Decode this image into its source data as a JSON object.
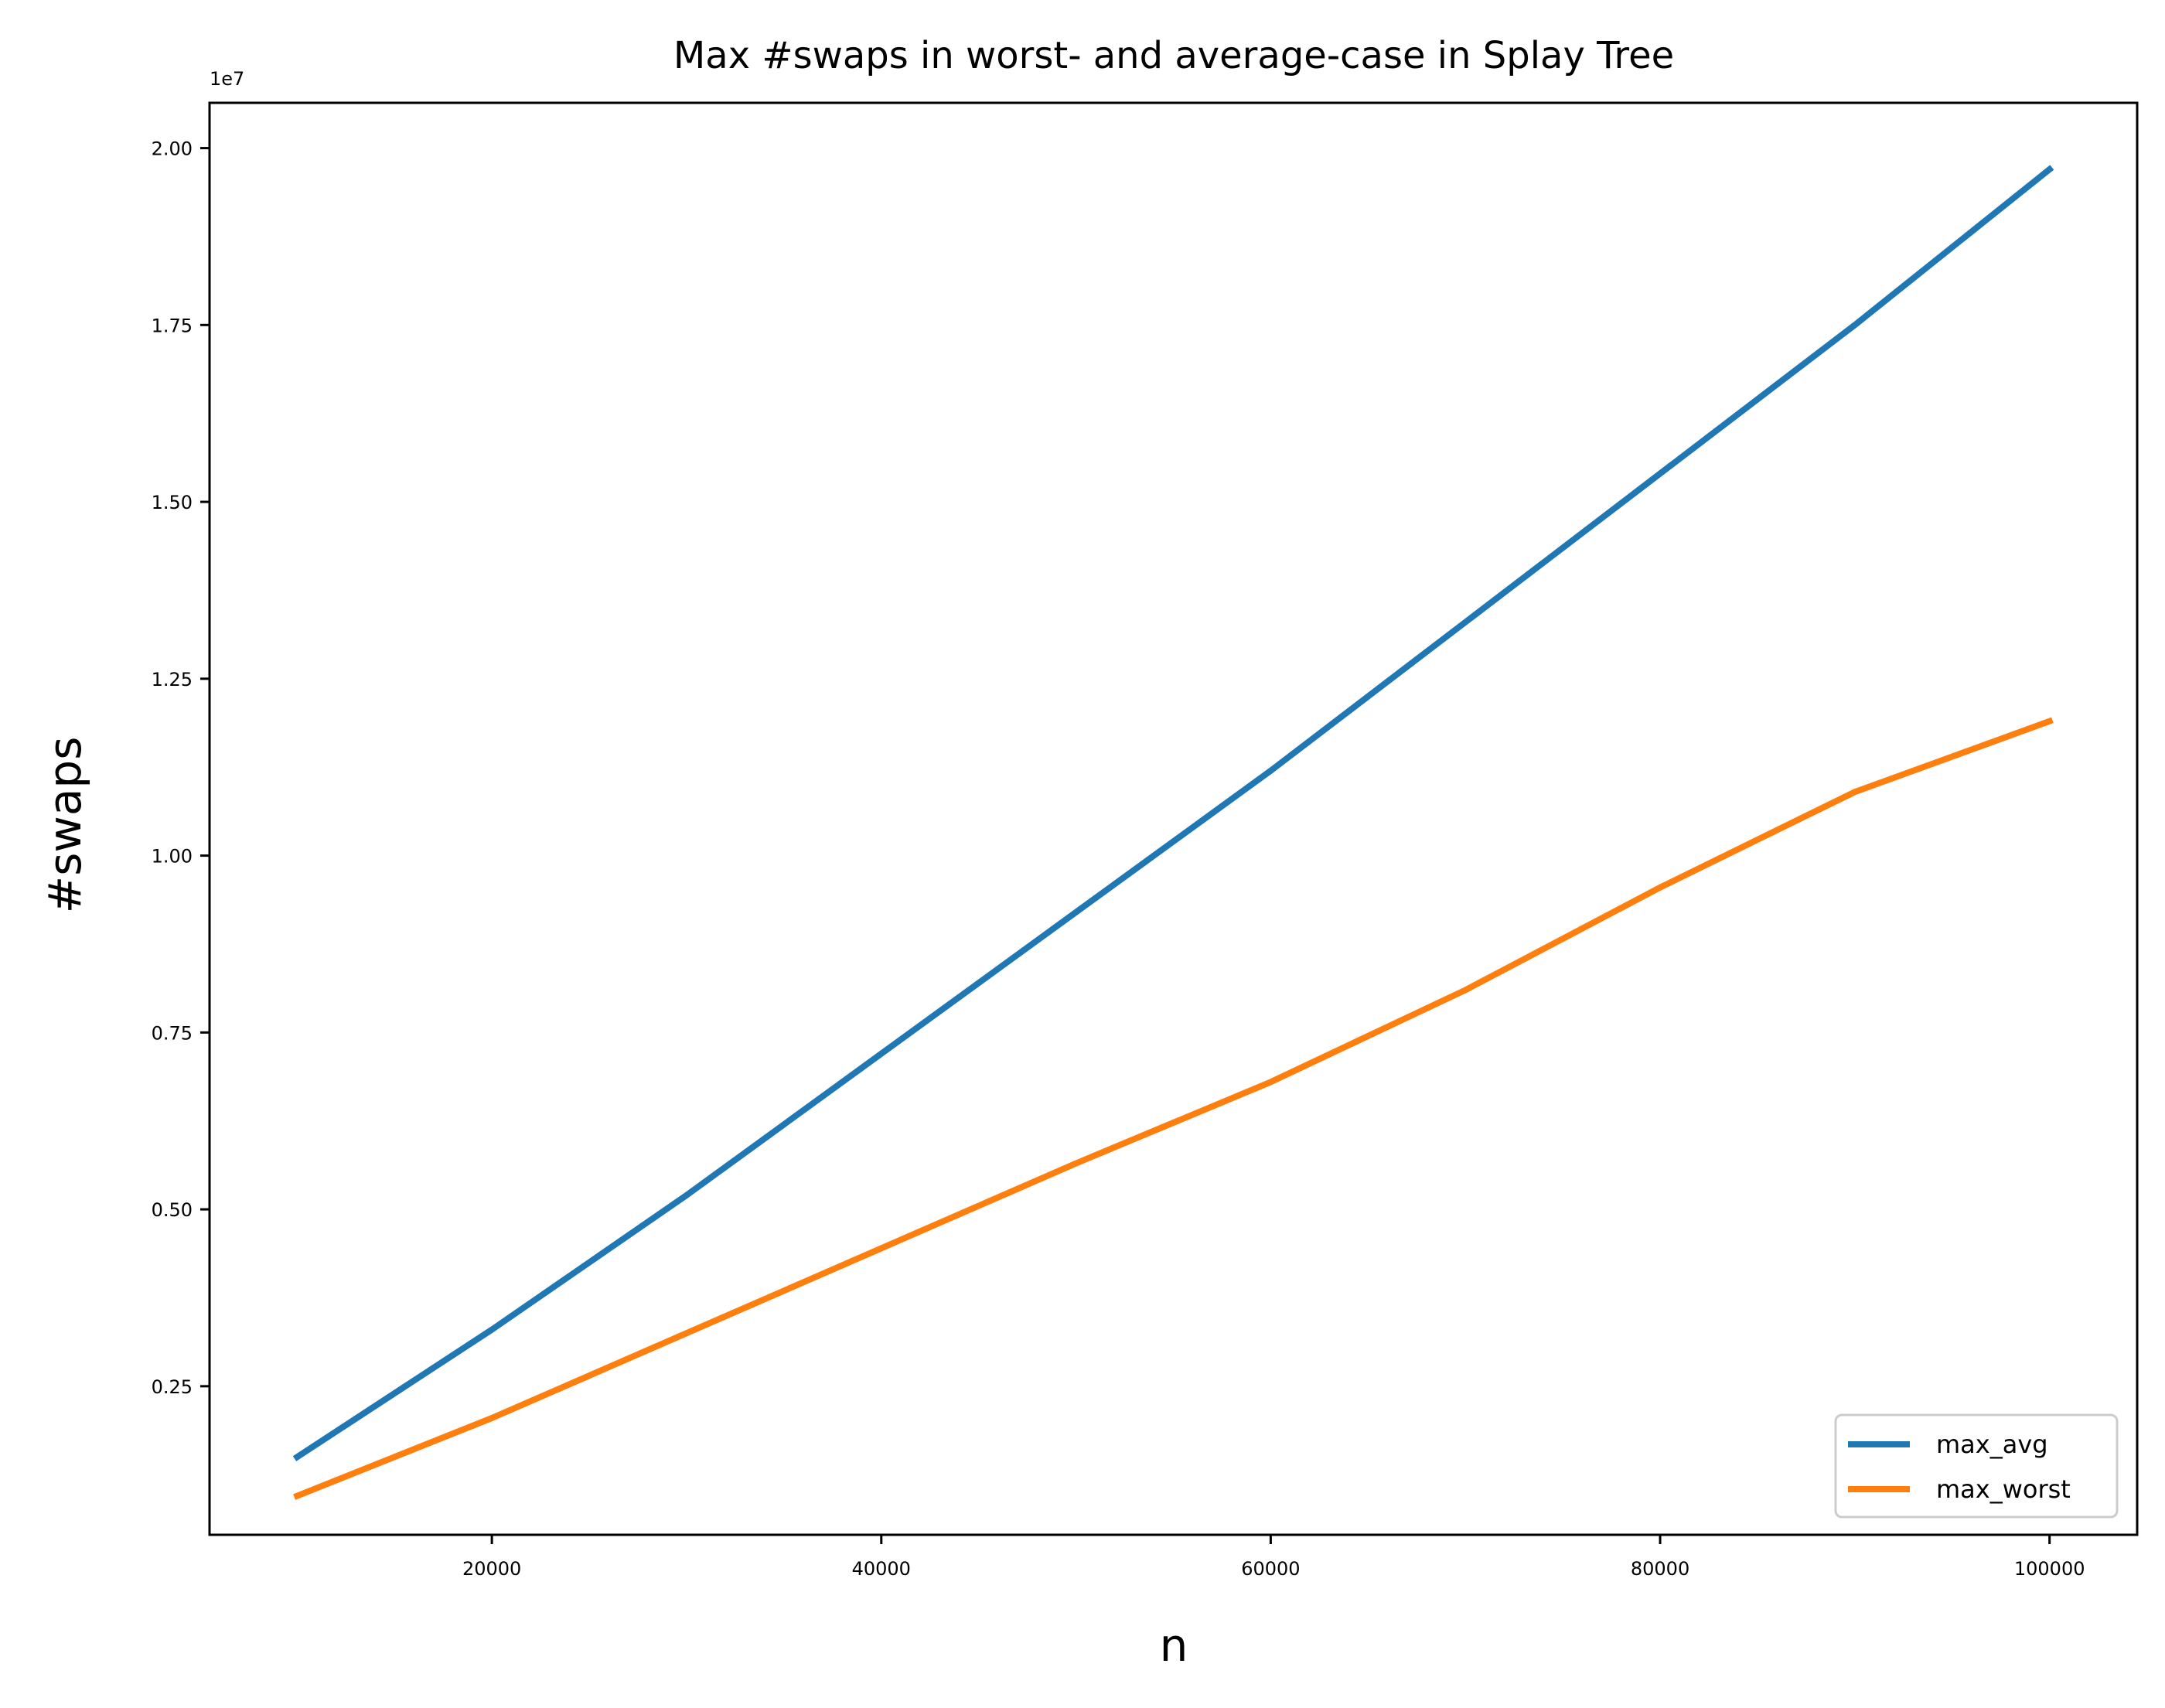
{
  "chart_data": {
    "type": "line",
    "title": "Max #swaps in worst- and average-case in Splay Tree",
    "xlabel": "n",
    "ylabel": "#swaps",
    "y_offset_label": "1e7",
    "xlim": [
      5500,
      104500
    ],
    "ylim": [
      0.04,
      2.064
    ],
    "x_ticks": [
      20000,
      40000,
      60000,
      80000,
      100000
    ],
    "x_tick_labels": [
      "20000",
      "40000",
      "60000",
      "80000",
      "100000"
    ],
    "y_ticks": [
      0.25,
      0.5,
      0.75,
      1.0,
      1.25,
      1.5,
      1.75,
      2.0
    ],
    "y_tick_labels": [
      "0.25",
      "0.50",
      "0.75",
      "1.00",
      "1.25",
      "1.50",
      "1.75",
      "2.00"
    ],
    "grid": false,
    "legend_position": "lower-right",
    "x": [
      10000,
      20000,
      30000,
      40000,
      50000,
      60000,
      70000,
      80000,
      90000,
      100000
    ],
    "series": [
      {
        "name": "max_avg",
        "color": "#1f77b4",
        "values": [
          0.15,
          0.33,
          0.52,
          0.72,
          0.92,
          1.12,
          1.33,
          1.54,
          1.75,
          1.97
        ]
      },
      {
        "name": "max_worst",
        "color": "#ff7f0e",
        "values": [
          0.095,
          0.205,
          0.325,
          0.445,
          0.565,
          0.68,
          0.81,
          0.955,
          1.09,
          1.19
        ]
      }
    ]
  }
}
